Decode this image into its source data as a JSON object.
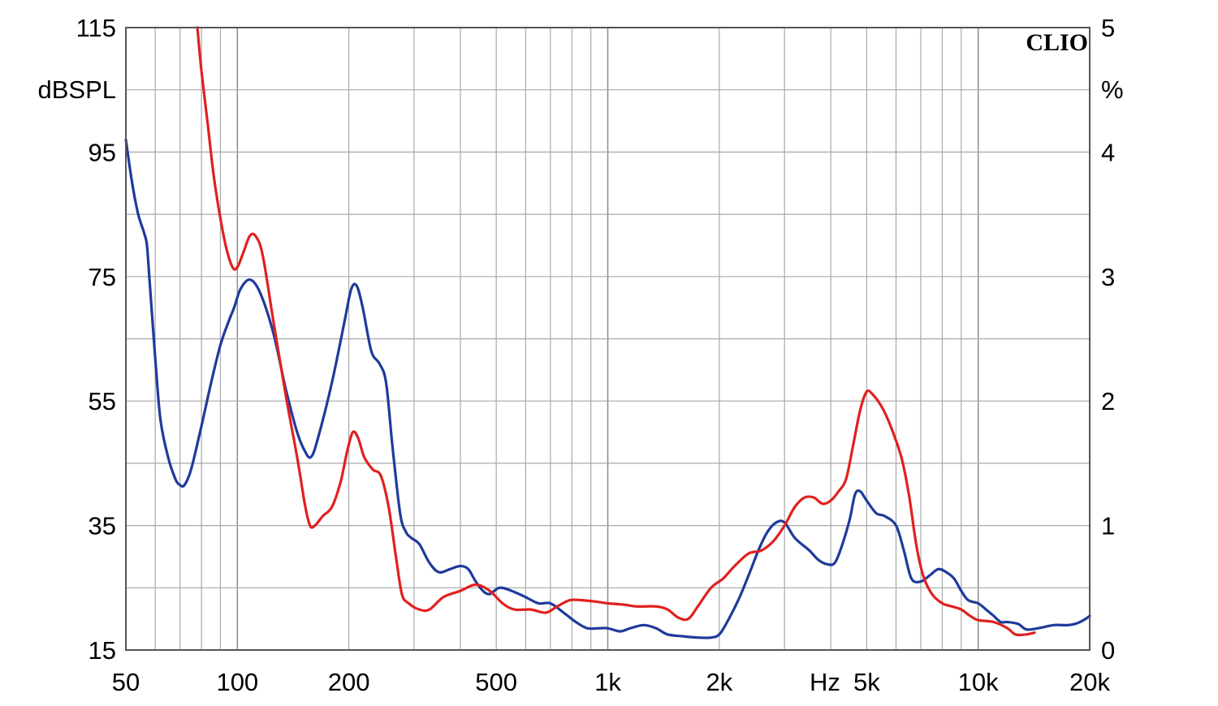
{
  "brand": "CLIO",
  "chart_data": {
    "type": "line",
    "x_scale": "log",
    "xlim": [
      50,
      20000
    ],
    "x_unit_label": "Hz",
    "x_ticks": [
      {
        "value": 50,
        "label": "50"
      },
      {
        "value": 100,
        "label": "100"
      },
      {
        "value": 200,
        "label": "200"
      },
      {
        "value": 500,
        "label": "500"
      },
      {
        "value": 1000,
        "label": "1k"
      },
      {
        "value": 2000,
        "label": "2k"
      },
      {
        "value": 5000,
        "label": "5k"
      },
      {
        "value": 10000,
        "label": "10k"
      },
      {
        "value": 20000,
        "label": "20k"
      }
    ],
    "ylabel_left": "dBSPL",
    "ylim_left": [
      15,
      115
    ],
    "y_ticks_left": [
      {
        "value": 15,
        "label": "15"
      },
      {
        "value": 35,
        "label": "35"
      },
      {
        "value": 55,
        "label": "55"
      },
      {
        "value": 75,
        "label": "75"
      },
      {
        "value": 95,
        "label": "95"
      },
      {
        "value": 115,
        "label": "115"
      }
    ],
    "ylabel_right": "%",
    "ylim_right": [
      0,
      5
    ],
    "y_ticks_right": [
      {
        "value": 0,
        "label": "0"
      },
      {
        "value": 1,
        "label": "1"
      },
      {
        "value": 2,
        "label": "2"
      },
      {
        "value": 3,
        "label": "3"
      },
      {
        "value": 4,
        "label": "4"
      },
      {
        "value": 5,
        "label": "5"
      }
    ],
    "grid": true,
    "series": [
      {
        "color": "#1f3a9a",
        "axis": "left",
        "points": [
          [
            50,
            97
          ],
          [
            52,
            90
          ],
          [
            54,
            85
          ],
          [
            56,
            82
          ],
          [
            57,
            80
          ],
          [
            58,
            74
          ],
          [
            60,
            62
          ],
          [
            62,
            52
          ],
          [
            65,
            46
          ],
          [
            68,
            42.5
          ],
          [
            70,
            41.5
          ],
          [
            72,
            41.5
          ],
          [
            75,
            44
          ],
          [
            80,
            51
          ],
          [
            85,
            58
          ],
          [
            90,
            64
          ],
          [
            95,
            68
          ],
          [
            98,
            70
          ],
          [
            102,
            73
          ],
          [
            108,
            74.5
          ],
          [
            115,
            72.5
          ],
          [
            125,
            66
          ],
          [
            135,
            57
          ],
          [
            145,
            50
          ],
          [
            152,
            47
          ],
          [
            158,
            46
          ],
          [
            165,
            49
          ],
          [
            180,
            58
          ],
          [
            195,
            68
          ],
          [
            203,
            73
          ],
          [
            210,
            73.5
          ],
          [
            218,
            70
          ],
          [
            230,
            63
          ],
          [
            242,
            61
          ],
          [
            252,
            58
          ],
          [
            262,
            48
          ],
          [
            275,
            37
          ],
          [
            285,
            34
          ],
          [
            295,
            33
          ],
          [
            310,
            32
          ],
          [
            330,
            29
          ],
          [
            350,
            27.5
          ],
          [
            375,
            28
          ],
          [
            400,
            28.5
          ],
          [
            420,
            28
          ],
          [
            440,
            26
          ],
          [
            460,
            24.5
          ],
          [
            480,
            24
          ],
          [
            510,
            25
          ],
          [
            550,
            24.5
          ],
          [
            600,
            23.5
          ],
          [
            650,
            22.5
          ],
          [
            700,
            22.5
          ],
          [
            760,
            21
          ],
          [
            820,
            19.5
          ],
          [
            880,
            18.5
          ],
          [
            950,
            18.5
          ],
          [
            1000,
            18.5
          ],
          [
            1080,
            18
          ],
          [
            1150,
            18.5
          ],
          [
            1250,
            19
          ],
          [
            1350,
            18.5
          ],
          [
            1450,
            17.5
          ],
          [
            1600,
            17.2
          ],
          [
            1750,
            17
          ],
          [
            1900,
            17
          ],
          [
            2000,
            17.5
          ],
          [
            2100,
            19.5
          ],
          [
            2250,
            23
          ],
          [
            2400,
            27
          ],
          [
            2550,
            31
          ],
          [
            2700,
            34
          ],
          [
            2850,
            35.5
          ],
          [
            3000,
            35.5
          ],
          [
            3200,
            33
          ],
          [
            3500,
            31
          ],
          [
            3700,
            29.5
          ],
          [
            3900,
            28.8
          ],
          [
            4100,
            29
          ],
          [
            4300,
            32
          ],
          [
            4500,
            36
          ],
          [
            4650,
            40
          ],
          [
            4800,
            40.5
          ],
          [
            5000,
            39
          ],
          [
            5300,
            37
          ],
          [
            5600,
            36.5
          ],
          [
            6000,
            35
          ],
          [
            6300,
            31
          ],
          [
            6600,
            26.5
          ],
          [
            7000,
            26
          ],
          [
            7400,
            27
          ],
          [
            7800,
            28
          ],
          [
            8200,
            27.5
          ],
          [
            8600,
            26.5
          ],
          [
            9000,
            24.5
          ],
          [
            9400,
            23
          ],
          [
            10000,
            22.5
          ],
          [
            10500,
            21.5
          ],
          [
            11000,
            20.5
          ],
          [
            11500,
            19.5
          ],
          [
            12000,
            19.5
          ],
          [
            12800,
            19.2
          ],
          [
            13500,
            18.3
          ],
          [
            14500,
            18.5
          ],
          [
            16000,
            19
          ],
          [
            17500,
            19
          ],
          [
            18500,
            19.3
          ],
          [
            19500,
            20
          ],
          [
            20000,
            20.5
          ]
        ]
      },
      {
        "color": "#e02020",
        "axis": "left",
        "points": [
          [
            78,
            115
          ],
          [
            80,
            108
          ],
          [
            83,
            100
          ],
          [
            86,
            92
          ],
          [
            89,
            86
          ],
          [
            93,
            80
          ],
          [
            97,
            76.5
          ],
          [
            100,
            76.5
          ],
          [
            104,
            79
          ],
          [
            108,
            81.5
          ],
          [
            112,
            81.5
          ],
          [
            117,
            78.5
          ],
          [
            125,
            68
          ],
          [
            135,
            56
          ],
          [
            145,
            46
          ],
          [
            152,
            38.5
          ],
          [
            157,
            35
          ],
          [
            162,
            35
          ],
          [
            170,
            36.5
          ],
          [
            180,
            38
          ],
          [
            190,
            42
          ],
          [
            198,
            47
          ],
          [
            205,
            50
          ],
          [
            212,
            49
          ],
          [
            220,
            46
          ],
          [
            232,
            44
          ],
          [
            244,
            43
          ],
          [
            256,
            38
          ],
          [
            268,
            30
          ],
          [
            278,
            24
          ],
          [
            290,
            22.5
          ],
          [
            310,
            21.5
          ],
          [
            330,
            21.5
          ],
          [
            360,
            23.5
          ],
          [
            400,
            24.5
          ],
          [
            440,
            25.5
          ],
          [
            480,
            24.5
          ],
          [
            520,
            22.5
          ],
          [
            560,
            21.5
          ],
          [
            620,
            21.5
          ],
          [
            680,
            21
          ],
          [
            730,
            22
          ],
          [
            790,
            23
          ],
          [
            850,
            23
          ],
          [
            920,
            22.8
          ],
          [
            1000,
            22.5
          ],
          [
            1100,
            22.3
          ],
          [
            1200,
            22
          ],
          [
            1350,
            22
          ],
          [
            1450,
            21.5
          ],
          [
            1550,
            20.2
          ],
          [
            1650,
            20
          ],
          [
            1750,
            22
          ],
          [
            1900,
            25
          ],
          [
            2050,
            26.5
          ],
          [
            2200,
            28.5
          ],
          [
            2400,
            30.5
          ],
          [
            2600,
            31
          ],
          [
            2800,
            32.5
          ],
          [
            3000,
            35
          ],
          [
            3200,
            38
          ],
          [
            3400,
            39.5
          ],
          [
            3600,
            39.5
          ],
          [
            3800,
            38.5
          ],
          [
            4000,
            39
          ],
          [
            4200,
            40.5
          ],
          [
            4400,
            42.5
          ],
          [
            4600,
            48
          ],
          [
            4800,
            53.5
          ],
          [
            5000,
            56.5
          ],
          [
            5200,
            56
          ],
          [
            5500,
            54
          ],
          [
            5800,
            51
          ],
          [
            6200,
            46
          ],
          [
            6500,
            40
          ],
          [
            6800,
            32
          ],
          [
            7100,
            27
          ],
          [
            7500,
            24
          ],
          [
            8000,
            22.5
          ],
          [
            8500,
            22
          ],
          [
            9000,
            21.5
          ],
          [
            9500,
            20.5
          ],
          [
            10000,
            19.8
          ],
          [
            11000,
            19.5
          ],
          [
            12000,
            18.5
          ],
          [
            12600,
            17.5
          ],
          [
            13500,
            17.5
          ],
          [
            14200,
            17.8
          ]
        ]
      }
    ]
  }
}
